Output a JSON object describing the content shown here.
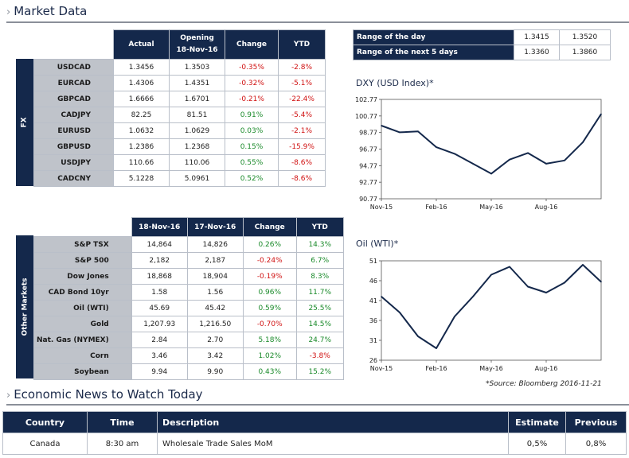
{
  "header": {
    "title": "Market Data"
  },
  "fx": {
    "side_label": "FX",
    "columns": [
      "Actual",
      "Opening\n18-Nov-16",
      "Change",
      "YTD"
    ],
    "rows": [
      {
        "name": "USDCAD",
        "actual": "1.3456",
        "opening": "1.3503",
        "change": "-0.35%",
        "ytd": "-2.8%"
      },
      {
        "name": "EURCAD",
        "actual": "1.4306",
        "opening": "1.4351",
        "change": "-0.32%",
        "ytd": "-5.1%"
      },
      {
        "name": "GBPCAD",
        "actual": "1.6666",
        "opening": "1.6701",
        "change": "-0.21%",
        "ytd": "-22.4%"
      },
      {
        "name": "CADJPY",
        "actual": "82.25",
        "opening": "81.51",
        "change": "0.91%",
        "ytd": "-5.4%"
      },
      {
        "name": "EURUSD",
        "actual": "1.0632",
        "opening": "1.0629",
        "change": "0.03%",
        "ytd": "-2.1%"
      },
      {
        "name": "GBPUSD",
        "actual": "1.2386",
        "opening": "1.2368",
        "change": "0.15%",
        "ytd": "-15.9%"
      },
      {
        "name": "USDJPY",
        "actual": "110.66",
        "opening": "110.06",
        "change": "0.55%",
        "ytd": "-8.6%"
      },
      {
        "name": "CADCNY",
        "actual": "5.1228",
        "opening": "5.0961",
        "change": "0.52%",
        "ytd": "-8.6%"
      }
    ]
  },
  "other": {
    "side_label": "Other Markets",
    "columns": [
      "18-Nov-16",
      "17-Nov-16",
      "Change",
      "YTD"
    ],
    "rows": [
      {
        "name": "S&P TSX",
        "a": "14,864",
        "b": "14,826",
        "change": "0.26%",
        "ytd": "14.3%"
      },
      {
        "name": "S&P 500",
        "a": "2,182",
        "b": "2,187",
        "change": "-0.24%",
        "ytd": "6.7%"
      },
      {
        "name": "Dow Jones",
        "a": "18,868",
        "b": "18,904",
        "change": "-0.19%",
        "ytd": "8.3%"
      },
      {
        "name": "CAD Bond 10yr",
        "a": "1.58",
        "b": "1.56",
        "change": "0.96%",
        "ytd": "11.7%"
      },
      {
        "name": "Oil (WTI)",
        "a": "45.69",
        "b": "45.42",
        "change": "0.59%",
        "ytd": "25.5%"
      },
      {
        "name": "Gold",
        "a": "1,207.93",
        "b": "1,216.50",
        "change": "-0.70%",
        "ytd": "14.5%"
      },
      {
        "name": "Nat. Gas (NYMEX)",
        "a": "2.84",
        "b": "2.70",
        "change": "5.18%",
        "ytd": "24.7%"
      },
      {
        "name": "Corn",
        "a": "3.46",
        "b": "3.42",
        "change": "1.02%",
        "ytd": "-3.8%"
      },
      {
        "name": "Soybean",
        "a": "9.94",
        "b": "9.90",
        "change": "0.43%",
        "ytd": "15.2%"
      }
    ]
  },
  "ranges": [
    {
      "label": "Range of the day",
      "low": "1.3415",
      "high": "1.3520"
    },
    {
      "label": "Range of the next 5 days",
      "low": "1.3360",
      "high": "1.3860"
    }
  ],
  "chart_data": [
    {
      "type": "line",
      "title": "DXY (USD Index)*",
      "yticks": [
        "102.77",
        "100.77",
        "98.77",
        "96.77",
        "94.77",
        "92.77",
        "90.77"
      ],
      "ylim": [
        90.77,
        102.77
      ],
      "xticks": [
        "Nov-15",
        "Feb-16",
        "May-16",
        "Aug-16"
      ],
      "x": [
        "Nov-15",
        "Dec-15",
        "Jan-16",
        "Feb-16",
        "Mar-16",
        "Apr-16",
        "May-16",
        "Jun-16",
        "Jul-16",
        "Aug-16",
        "Sep-16",
        "Oct-16",
        "Nov-16"
      ],
      "series": [
        {
          "values": [
            99.6,
            98.8,
            98.9,
            97.0,
            96.2,
            95.0,
            93.8,
            95.5,
            96.3,
            95.0,
            95.4,
            97.6,
            101.0
          ]
        }
      ]
    },
    {
      "type": "line",
      "title": "Oil (WTI)*",
      "yticks": [
        "51",
        "46",
        "41",
        "36",
        "31",
        "26"
      ],
      "ylim": [
        26,
        51
      ],
      "xticks": [
        "Nov-15",
        "Feb-16",
        "May-16",
        "Aug-16"
      ],
      "x": [
        "Nov-15",
        "Dec-15",
        "Jan-16",
        "Feb-16",
        "Mar-16",
        "Apr-16",
        "May-16",
        "Jun-16",
        "Jul-16",
        "Aug-16",
        "Sep-16",
        "Oct-16",
        "Nov-16"
      ],
      "series": [
        {
          "values": [
            42.0,
            38.0,
            32.0,
            29.0,
            37.0,
            42.0,
            47.5,
            49.5,
            44.5,
            43.0,
            45.5,
            50.0,
            45.7
          ]
        }
      ]
    }
  ],
  "source_note": "*Source: Bloomberg  2016-11-21",
  "news": {
    "title": "Economic News to Watch Today",
    "columns": [
      "Country",
      "Time",
      "Description",
      "Estimate",
      "Previous"
    ],
    "rows": [
      {
        "country": "Canada",
        "time": "8:30 am",
        "description": "Wholesale Trade Sales MoM",
        "estimate": "0,5%",
        "previous": "0,8%"
      }
    ]
  }
}
